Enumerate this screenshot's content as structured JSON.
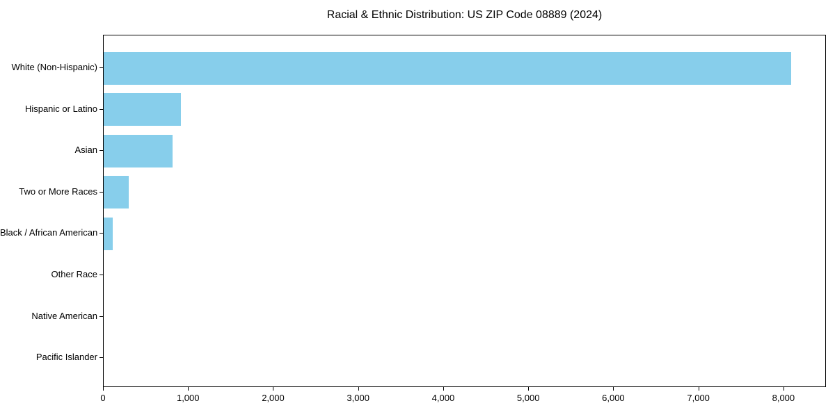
{
  "title": "Racial & Ethnic Distribution: US ZIP Code 08889 (2024)",
  "chart_data": {
    "type": "bar",
    "orientation": "horizontal",
    "title": "Racial & Ethnic Distribution: US ZIP Code 08889 (2024)",
    "xlabel": "",
    "ylabel": "",
    "categories": [
      "White (Non-Hispanic)",
      "Hispanic or Latino",
      "Asian",
      "Two or More Races",
      "Black / African American",
      "Other Race",
      "Native American",
      "Pacific Islander"
    ],
    "values": [
      8080,
      908,
      810,
      295,
      105,
      0,
      0,
      0
    ],
    "bar_color": "#87CEEB",
    "xlim": [
      0,
      8500
    ],
    "xticks": [
      0,
      1000,
      2000,
      3000,
      4000,
      5000,
      6000,
      7000,
      8000
    ],
    "xtick_labels": [
      "0",
      "1,000",
      "2,000",
      "3,000",
      "4,000",
      "5,000",
      "6,000",
      "7,000",
      "8,000"
    ],
    "grid": false,
    "legend": null
  }
}
